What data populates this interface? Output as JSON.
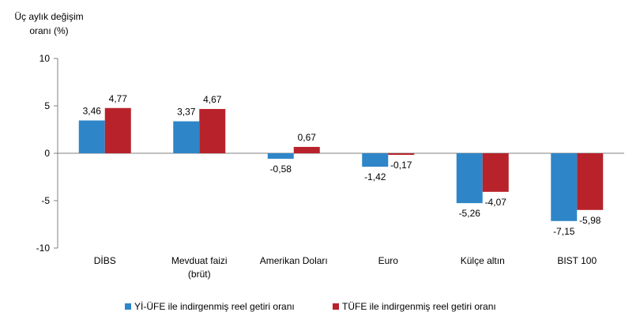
{
  "chart_data": {
    "type": "bar",
    "ylabel": [
      "Üç aylık değişim",
      "oranı (%)"
    ],
    "ylim": [
      -10,
      10
    ],
    "yticks": [
      10,
      5,
      0,
      -5,
      -10
    ],
    "categories": [
      [
        "DİBS"
      ],
      [
        "Mevduat faizi",
        "(brüt)"
      ],
      [
        "Amerikan Doları"
      ],
      [
        "Euro"
      ],
      [
        "Külçe altın"
      ],
      [
        "BIST 100"
      ]
    ],
    "series": [
      {
        "name": "Yİ-ÜFE ile indirgenmiş reel getiri oranı",
        "color": "#2e86c8",
        "values": [
          3.46,
          3.37,
          -0.58,
          -1.42,
          -5.26,
          -7.15
        ],
        "labels": [
          "3,46",
          "3,37",
          "-0,58",
          "-1,42",
          "-5,26",
          "-7,15"
        ]
      },
      {
        "name": "TÜFE ile indirgenmiş reel getiri oranı",
        "color": "#b8222a",
        "values": [
          4.77,
          4.67,
          0.67,
          -0.17,
          -4.07,
          -5.98
        ],
        "labels": [
          "4,77",
          "4,67",
          "0,67",
          "-0,17",
          "-4,07",
          "-5,98"
        ]
      }
    ],
    "grid": false,
    "legend_position": "bottom"
  }
}
